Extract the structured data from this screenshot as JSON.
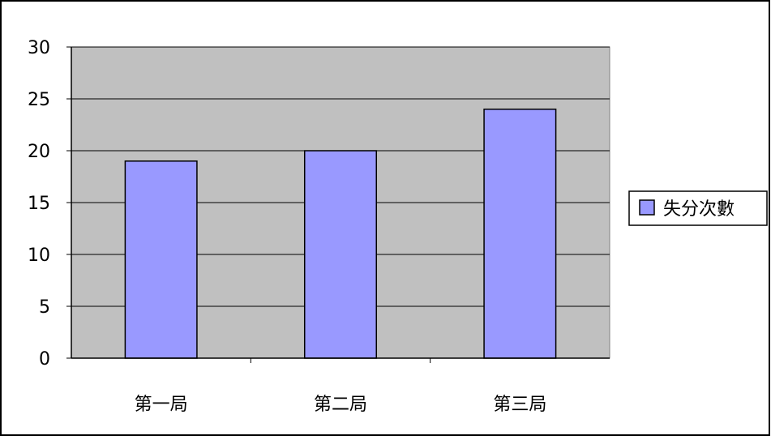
{
  "chart_data": {
    "type": "bar",
    "categories": [
      "第一局",
      "第二局",
      "第三局"
    ],
    "series": [
      {
        "name": "失分次數",
        "values": [
          19,
          20,
          24
        ]
      }
    ],
    "ylim": [
      0,
      30
    ],
    "yticks": [
      0,
      5,
      10,
      15,
      20,
      25,
      30
    ],
    "grid": true,
    "legend": "right",
    "colors": {
      "bar": "#9999ff",
      "plot_background": "#c0c0c0",
      "border": "#000000"
    }
  }
}
